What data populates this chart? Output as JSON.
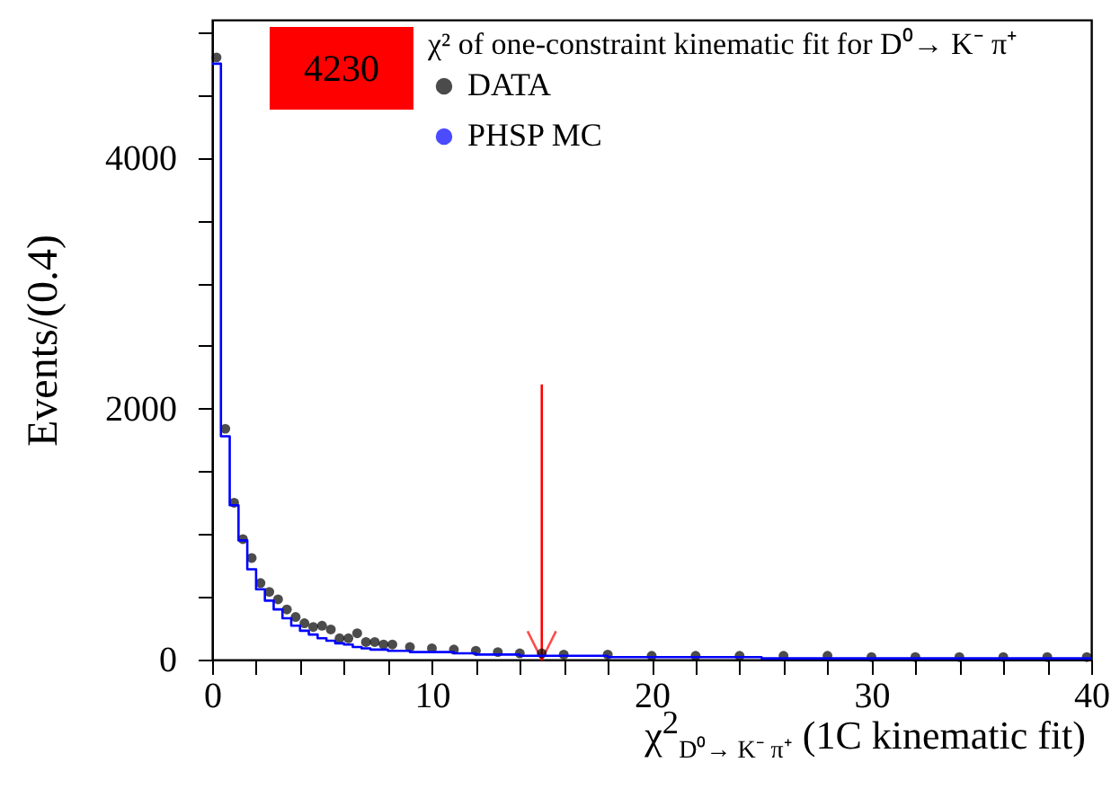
{
  "chart_data": {
    "type": "step",
    "xlabel": "χ$^{2}$$_{D⁰→ K⁻ π⁺}$ (1C kinematic fit)",
    "ylabel": "Events/(0.4)",
    "legend_title": "χ² of one-constraint kinematic fit for D⁰→ K⁻ π⁺",
    "annotations": [
      "4230"
    ],
    "xlim": [
      0,
      40
    ],
    "ylim": [
      0,
      5100
    ],
    "xticks": [
      0,
      {
        "value": 2,
        "label": null
      },
      {
        "value": 4,
        "label": null
      },
      {
        "value": 6,
        "label": null
      },
      {
        "value": 8,
        "label": null
      },
      10,
      {
        "value": 12,
        "label": null
      },
      {
        "value": 14,
        "label": null
      },
      {
        "value": 16,
        "label": null
      },
      {
        "value": 18,
        "label": null
      },
      20,
      {
        "value": 22,
        "label": null
      },
      {
        "value": 24,
        "label": null
      },
      {
        "value": 26,
        "label": null
      },
      {
        "value": 28,
        "label": null
      },
      30,
      {
        "value": 32,
        "label": null
      },
      {
        "value": 34,
        "label": null
      },
      {
        "value": 36,
        "label": null
      },
      {
        "value": 38,
        "label": null
      },
      40
    ],
    "yticks": [
      0,
      {
        "value": 500,
        "label": null
      },
      {
        "value": 1000,
        "label": null
      },
      {
        "value": 1500,
        "label": null
      },
      2000,
      {
        "value": 2500,
        "label": null
      },
      {
        "value": 3000,
        "label": null
      },
      {
        "value": 3500,
        "label": null
      },
      4000,
      {
        "value": 4500,
        "label": null
      },
      {
        "value": 5000,
        "label": null
      }
    ],
    "ref_lines": [
      {
        "axis": "x",
        "value": 15,
        "color": "#ff0000"
      }
    ],
    "legend": "top",
    "series": [
      {
        "name": "DATA",
        "type": "scatter",
        "marker": "circle",
        "color": "#000000",
        "x": [
          0.2,
          0.6,
          1.0,
          1.4,
          1.8,
          2.2,
          2.6,
          3.0,
          3.4,
          3.8,
          4.2,
          4.6,
          5.0,
          5.4,
          5.8,
          6.2,
          6.6,
          7.0,
          7.4,
          7.8,
          8.2,
          9,
          10,
          11,
          12,
          13,
          14,
          15,
          16,
          18,
          20,
          22,
          24,
          26,
          28,
          30,
          32,
          34,
          36,
          38,
          39.8
        ],
        "values": [
          4800,
          1840,
          1250,
          960,
          810,
          610,
          540,
          480,
          400,
          340,
          290,
          260,
          270,
          240,
          170,
          170,
          210,
          140,
          140,
          120,
          120,
          100,
          90,
          80,
          70,
          60,
          50,
          50,
          40,
          40,
          30,
          30,
          30,
          30,
          30,
          20,
          20,
          20,
          20,
          20,
          20
        ]
      },
      {
        "name": "PHSP MC",
        "color": "#0000ff",
        "x": [
          0,
          0.4,
          0.8,
          1.2,
          1.6,
          2.0,
          2.4,
          2.8,
          3.2,
          3.6,
          4.0,
          4.4,
          4.8,
          5.2,
          5.6,
          6.0,
          6.4,
          6.8,
          7.2,
          7.6,
          8.0,
          9,
          10,
          11,
          12,
          14,
          16,
          18,
          20,
          25,
          30,
          35,
          40
        ],
        "values": [
          4750,
          1780,
          1230,
          950,
          720,
          560,
          470,
          400,
          330,
          270,
          230,
          200,
          170,
          150,
          130,
          120,
          100,
          90,
          80,
          80,
          70,
          60,
          60,
          50,
          40,
          30,
          30,
          20,
          20,
          10,
          10,
          10,
          10
        ]
      }
    ]
  }
}
